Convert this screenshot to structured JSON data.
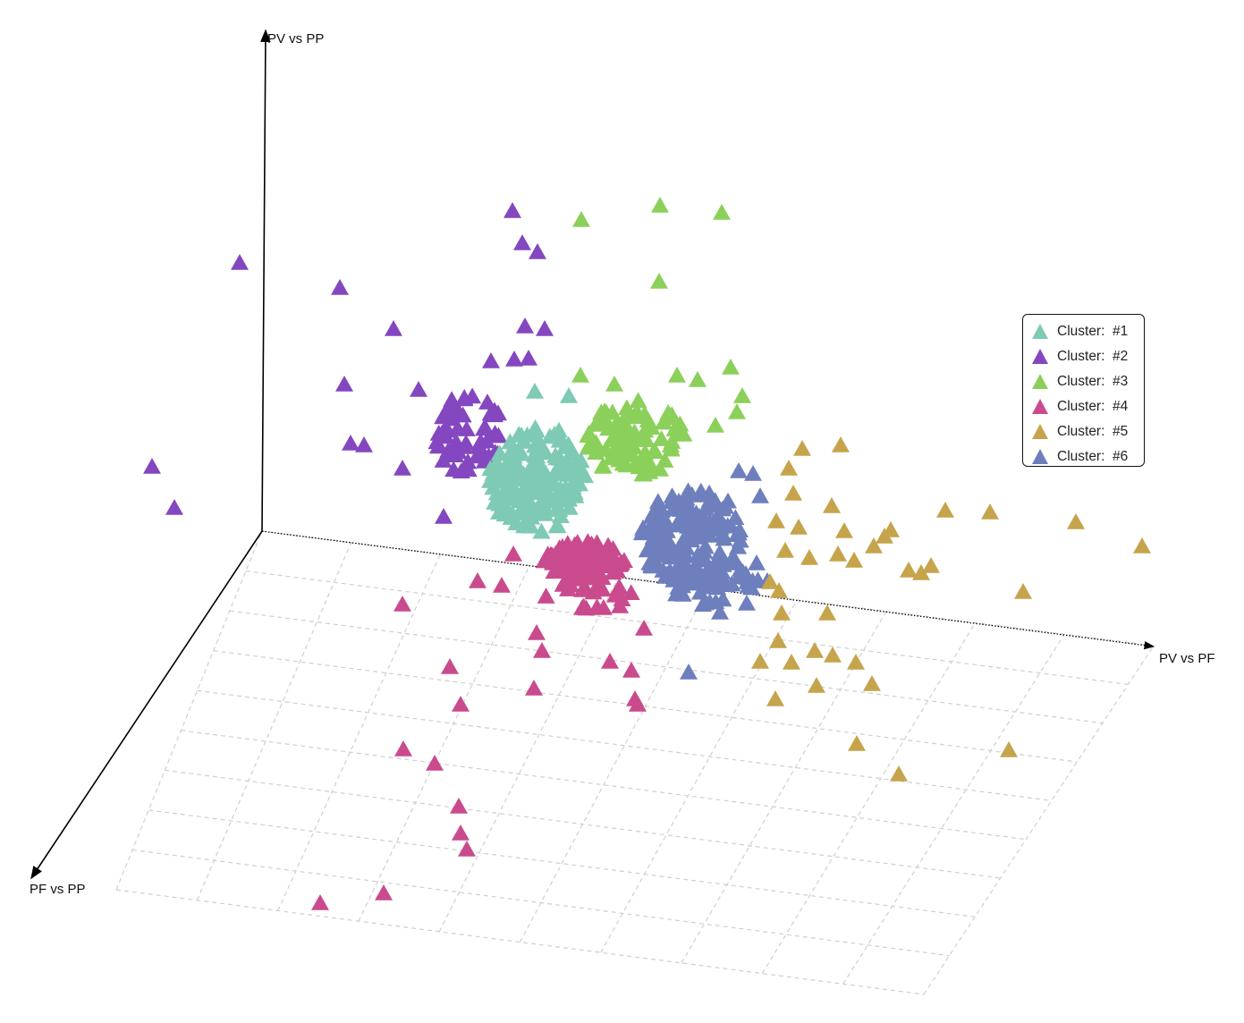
{
  "chart_data": {
    "type": "scatter3d",
    "title": "",
    "marker": "triangle",
    "axes": {
      "x": {
        "label": "PV vs PF"
      },
      "y": {
        "label": "PV vs PP"
      },
      "z": {
        "label": "PF vs PP"
      }
    },
    "grid": true,
    "legend_position": "right",
    "series": [
      {
        "name": "Cluster:  #1",
        "color": "#7ecab4"
      },
      {
        "name": "Cluster:  #2",
        "color": "#8447c0"
      },
      {
        "name": "Cluster:  #3",
        "color": "#8bd05a"
      },
      {
        "name": "Cluster:  #4",
        "color": "#c94b8e"
      },
      {
        "name": "Cluster:  #5",
        "color": "#c6a44c"
      },
      {
        "name": "Cluster:  #6",
        "color": "#6e7fbd"
      }
    ]
  }
}
